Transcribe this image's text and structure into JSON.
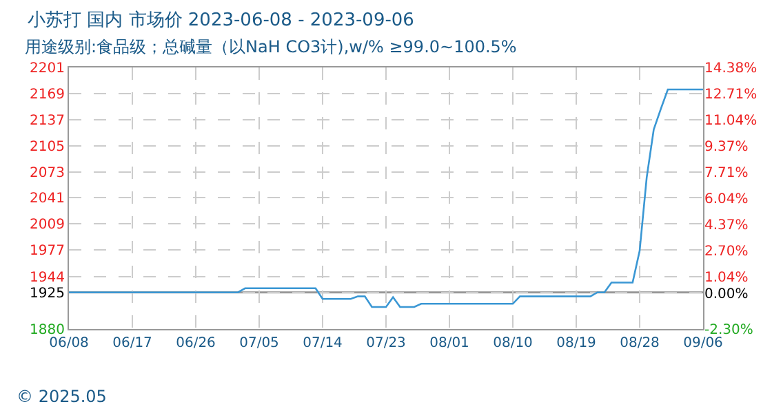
{
  "chart_data": {
    "type": "line",
    "title": "小苏打 国内 市场价 2023-06-08 - 2023-09-06",
    "subtitle": "用途级别:食品级；总碱量（以NaH CO3计),w/% ≥99.0~100.5%",
    "x": [
      "2023-06-08",
      "2023-07-02",
      "2023-07-03",
      "2023-07-13",
      "2023-07-14",
      "2023-07-18",
      "2023-07-19",
      "2023-07-20",
      "2023-07-21",
      "2023-07-23",
      "2023-07-24",
      "2023-07-25",
      "2023-07-27",
      "2023-07-28",
      "2023-08-10",
      "2023-08-11",
      "2023-08-21",
      "2023-08-22",
      "2023-08-23",
      "2023-08-24",
      "2023-08-27",
      "2023-08-28",
      "2023-08-29",
      "2023-08-30",
      "2023-08-31",
      "2023-09-01",
      "2023-09-06"
    ],
    "series": [
      {
        "color": "#3a97d4",
        "values": [
          1925,
          1925,
          1930,
          1930,
          1917,
          1917,
          1920,
          1920,
          1907,
          1907,
          1919,
          1907,
          1907,
          1911,
          1911,
          1920,
          1920,
          1925,
          1925,
          1937,
          1937,
          1976,
          2066,
          2125,
          2150,
          2174,
          2174
        ]
      }
    ],
    "xlim": [
      "2023-06-08",
      "2023-09-06"
    ],
    "xticks": [
      {
        "value": "2023-06-08",
        "label": "06/08"
      },
      {
        "value": "2023-06-17",
        "label": "06/17"
      },
      {
        "value": "2023-06-26",
        "label": "06/26"
      },
      {
        "value": "2023-07-05",
        "label": "07/05"
      },
      {
        "value": "2023-07-14",
        "label": "07/14"
      },
      {
        "value": "2023-07-23",
        "label": "07/23"
      },
      {
        "value": "2023-08-01",
        "label": "08/01"
      },
      {
        "value": "2023-08-10",
        "label": "08/10"
      },
      {
        "value": "2023-08-19",
        "label": "08/19"
      },
      {
        "value": "2023-08-28",
        "label": "08/28"
      },
      {
        "value": "2023-09-06",
        "label": "09/06"
      }
    ],
    "ylim": [
      1880,
      2201
    ],
    "yticks": [
      1880,
      1925,
      1944,
      1977,
      2009,
      2041,
      2073,
      2105,
      2137,
      2169,
      2201
    ],
    "y2lim": [
      -2.3,
      14.38
    ],
    "y2ticks": [
      {
        "value": -2.3,
        "label": "-2.30%"
      },
      {
        "value": 0,
        "label": "0.00%"
      },
      {
        "value": 1.04,
        "label": "1.04%"
      },
      {
        "value": 2.7,
        "label": "2.70%"
      },
      {
        "value": 4.37,
        "label": "4.37%"
      },
      {
        "value": 6.04,
        "label": "6.04%"
      },
      {
        "value": 7.71,
        "label": "7.71%"
      },
      {
        "value": 9.37,
        "label": "9.37%"
      },
      {
        "value": 11.04,
        "label": "11.04%"
      },
      {
        "value": 12.71,
        "label": "12.71%"
      },
      {
        "value": 14.38,
        "label": "14.38%"
      }
    ],
    "ref_lines": [
      {
        "axis": "y",
        "value": 1925,
        "color": "#999999",
        "line_style": "solid"
      }
    ],
    "grid": true,
    "marker": "none",
    "line_style": "solid",
    "annotations": [
      "© 2025.05"
    ]
  }
}
